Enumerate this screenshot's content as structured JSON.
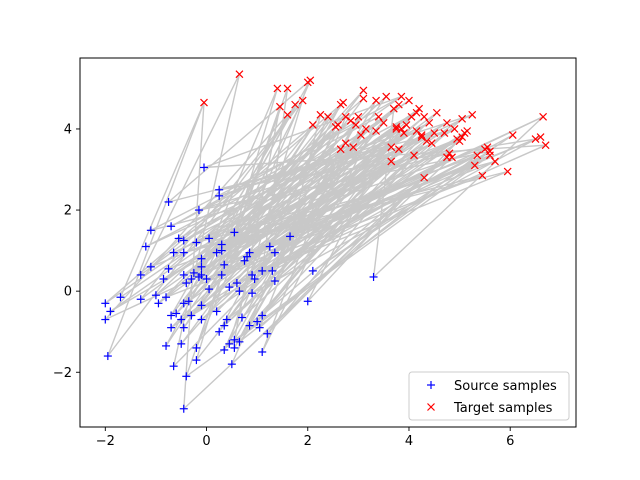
{
  "chart_data": {
    "type": "scatter",
    "title": "",
    "xlabel": "",
    "ylabel": "",
    "xlim": [
      -2.5,
      7.3
    ],
    "ylim": [
      -3.35,
      5.75
    ],
    "xticks": [
      -2,
      0,
      2,
      4,
      6
    ],
    "yticks": [
      -2,
      0,
      2,
      4
    ],
    "grid": false,
    "legend_position": "lower-right",
    "connector_color": "#c8c8c8",
    "series": [
      {
        "name": "Source samples",
        "marker": "+",
        "color": "#0000ff",
        "points": [
          [
            -2.0,
            -0.3
          ],
          [
            -2.0,
            -0.7
          ],
          [
            -1.9,
            -0.5
          ],
          [
            -1.95,
            -1.6
          ],
          [
            -1.7,
            -0.15
          ],
          [
            -1.3,
            -0.2
          ],
          [
            -1.3,
            0.4
          ],
          [
            -1.2,
            1.1
          ],
          [
            -1.1,
            1.5
          ],
          [
            -1.1,
            0.6
          ],
          [
            -1.0,
            -0.1
          ],
          [
            -0.95,
            -0.3
          ],
          [
            -0.85,
            0.3
          ],
          [
            -0.8,
            -0.15
          ],
          [
            -0.8,
            -1.35
          ],
          [
            -0.75,
            0.55
          ],
          [
            -0.75,
            2.2
          ],
          [
            -0.7,
            -0.6
          ],
          [
            -0.7,
            -0.9
          ],
          [
            -0.7,
            1.6
          ],
          [
            -0.65,
            0.95
          ],
          [
            -0.65,
            -1.85
          ],
          [
            -0.6,
            -0.55
          ],
          [
            -0.55,
            1.3
          ],
          [
            -0.5,
            -1.3
          ],
          [
            -0.5,
            -0.7
          ],
          [
            -0.45,
            -0.9
          ],
          [
            -0.45,
            0.4
          ],
          [
            -0.45,
            -0.3
          ],
          [
            -0.45,
            1.25
          ],
          [
            -0.45,
            0.95
          ],
          [
            -0.45,
            -2.9
          ],
          [
            -0.4,
            -2.1
          ],
          [
            -0.4,
            0.2
          ],
          [
            -0.35,
            -0.25
          ],
          [
            -0.3,
            -0.6
          ],
          [
            -0.3,
            0.3
          ],
          [
            -0.25,
            0.45
          ],
          [
            -0.2,
            -1.4
          ],
          [
            -0.2,
            1.2
          ],
          [
            -0.2,
            -1.7
          ],
          [
            -0.15,
            0.35
          ],
          [
            -0.15,
            2.0
          ],
          [
            -0.1,
            0.8
          ],
          [
            -0.1,
            0.6
          ],
          [
            -0.1,
            0.4
          ],
          [
            -0.1,
            -0.35
          ],
          [
            -0.1,
            -0.7
          ],
          [
            -0.05,
            3.05
          ],
          [
            0.0,
            0.3
          ],
          [
            0.05,
            1.3
          ],
          [
            0.05,
            0.05
          ],
          [
            0.2,
            0.95
          ],
          [
            0.2,
            -0.5
          ],
          [
            0.25,
            2.35
          ],
          [
            0.25,
            2.5
          ],
          [
            0.25,
            -1.0
          ],
          [
            0.3,
            1.15
          ],
          [
            0.3,
            1.0
          ],
          [
            0.3,
            0.4
          ],
          [
            0.35,
            0.65
          ],
          [
            0.35,
            -0.85
          ],
          [
            0.35,
            -1.45
          ],
          [
            0.4,
            -0.7
          ],
          [
            0.45,
            0.1
          ],
          [
            0.45,
            -1.3
          ],
          [
            0.5,
            -1.8
          ],
          [
            0.55,
            1.45
          ],
          [
            0.55,
            -1.4
          ],
          [
            0.55,
            -1.2
          ],
          [
            0.6,
            0.2
          ],
          [
            0.65,
            0.0
          ],
          [
            0.65,
            -1.25
          ],
          [
            0.7,
            -0.65
          ],
          [
            0.75,
            0.75
          ],
          [
            0.8,
            0.85
          ],
          [
            0.85,
            0.95
          ],
          [
            0.85,
            -0.85
          ],
          [
            0.9,
            -0.05
          ],
          [
            0.9,
            0.4
          ],
          [
            0.95,
            0.3
          ],
          [
            1.0,
            -0.75
          ],
          [
            1.05,
            -0.9
          ],
          [
            1.1,
            0.5
          ],
          [
            1.1,
            -0.6
          ],
          [
            1.1,
            -1.5
          ],
          [
            1.2,
            -1.05
          ],
          [
            1.25,
            1.1
          ],
          [
            1.3,
            0.5
          ],
          [
            1.35,
            0.95
          ],
          [
            1.35,
            0.25
          ],
          [
            1.65,
            1.35
          ],
          [
            2.0,
            -0.25
          ],
          [
            2.1,
            0.5
          ],
          [
            3.3,
            0.35
          ]
        ]
      },
      {
        "name": "Target samples",
        "marker": "x",
        "color": "#ff0000",
        "points": [
          [
            -0.05,
            4.65
          ],
          [
            0.65,
            5.35
          ],
          [
            1.4,
            5.0
          ],
          [
            1.45,
            4.55
          ],
          [
            1.6,
            5.0
          ],
          [
            1.6,
            4.35
          ],
          [
            1.75,
            4.6
          ],
          [
            1.9,
            4.7
          ],
          [
            2.0,
            5.15
          ],
          [
            2.05,
            5.2
          ],
          [
            2.1,
            4.1
          ],
          [
            2.25,
            4.35
          ],
          [
            2.4,
            4.3
          ],
          [
            2.55,
            4.05
          ],
          [
            2.6,
            4.1
          ],
          [
            2.65,
            4.6
          ],
          [
            2.65,
            3.5
          ],
          [
            2.7,
            4.65
          ],
          [
            2.75,
            4.3
          ],
          [
            2.75,
            3.65
          ],
          [
            2.85,
            4.2
          ],
          [
            2.9,
            3.55
          ],
          [
            2.95,
            4.1
          ],
          [
            3.0,
            4.3
          ],
          [
            3.05,
            3.85
          ],
          [
            3.1,
            4.95
          ],
          [
            3.1,
            4.75
          ],
          [
            3.15,
            4.0
          ],
          [
            3.35,
            4.7
          ],
          [
            3.35,
            3.95
          ],
          [
            3.4,
            4.3
          ],
          [
            3.5,
            4.15
          ],
          [
            3.55,
            4.8
          ],
          [
            3.65,
            3.55
          ],
          [
            3.65,
            3.2
          ],
          [
            3.7,
            4.5
          ],
          [
            3.75,
            4.05
          ],
          [
            3.75,
            4.0
          ],
          [
            3.8,
            4.6
          ],
          [
            3.8,
            3.5
          ],
          [
            3.85,
            4.8
          ],
          [
            3.85,
            4.0
          ],
          [
            3.9,
            3.9
          ],
          [
            3.95,
            4.1
          ],
          [
            4.0,
            4.7
          ],
          [
            4.05,
            4.3
          ],
          [
            4.1,
            3.35
          ],
          [
            4.15,
            4.4
          ],
          [
            4.15,
            3.95
          ],
          [
            4.2,
            4.5
          ],
          [
            4.25,
            3.8
          ],
          [
            4.25,
            3.85
          ],
          [
            4.3,
            2.8
          ],
          [
            4.3,
            4.3
          ],
          [
            4.35,
            3.7
          ],
          [
            4.4,
            4.15
          ],
          [
            4.45,
            3.65
          ],
          [
            4.5,
            3.9
          ],
          [
            4.55,
            4.4
          ],
          [
            4.7,
            3.9
          ],
          [
            4.75,
            4.15
          ],
          [
            4.75,
            3.3
          ],
          [
            4.8,
            3.4
          ],
          [
            4.85,
            3.3
          ],
          [
            4.9,
            4.0
          ],
          [
            4.95,
            3.75
          ],
          [
            5.0,
            3.7
          ],
          [
            5.05,
            3.8
          ],
          [
            5.05,
            4.25
          ],
          [
            5.1,
            3.9
          ],
          [
            5.15,
            3.95
          ],
          [
            5.25,
            4.35
          ],
          [
            5.3,
            3.1
          ],
          [
            5.35,
            3.35
          ],
          [
            5.45,
            2.85
          ],
          [
            5.5,
            3.5
          ],
          [
            5.55,
            3.55
          ],
          [
            5.6,
            3.45
          ],
          [
            5.6,
            3.35
          ],
          [
            5.7,
            3.2
          ],
          [
            5.95,
            2.95
          ],
          [
            6.05,
            3.85
          ],
          [
            6.5,
            3.75
          ],
          [
            6.6,
            3.8
          ],
          [
            6.65,
            4.3
          ],
          [
            6.7,
            3.6
          ]
        ]
      }
    ]
  }
}
